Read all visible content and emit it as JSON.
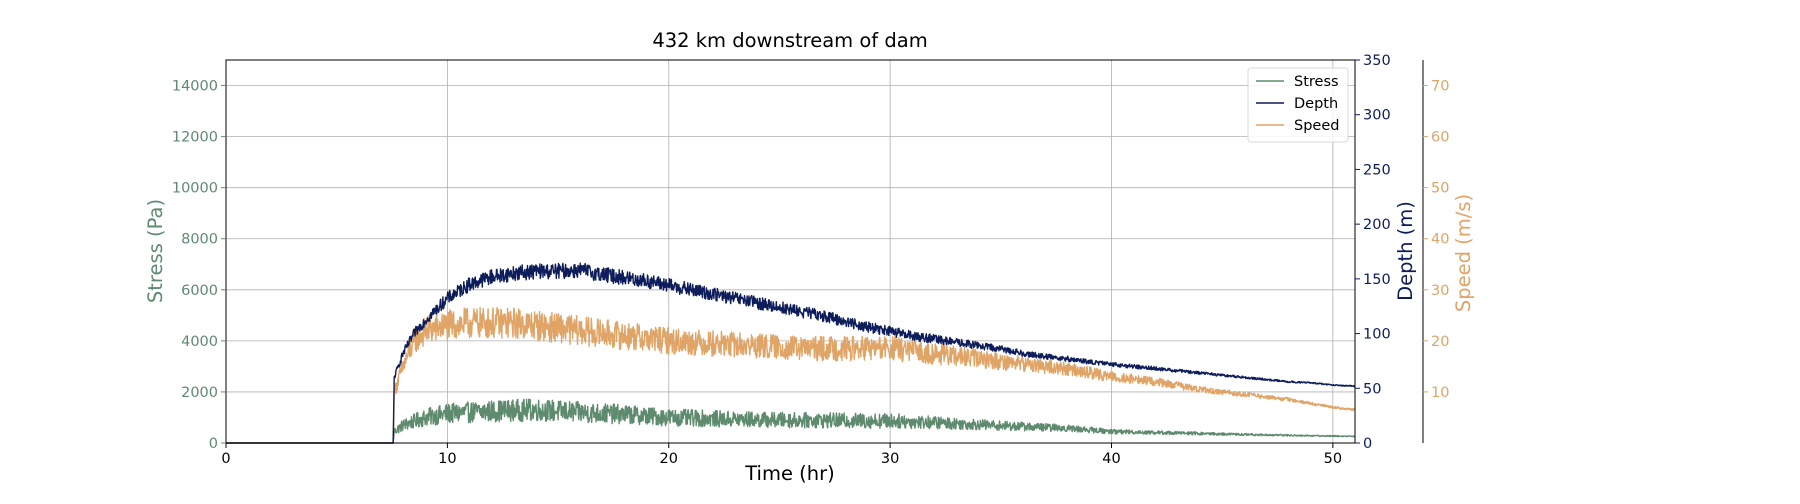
{
  "chart_data": {
    "type": "line",
    "title": "432 km downstream of dam",
    "xlabel": "Time (hr)",
    "xlim": [
      0,
      51
    ],
    "xticks": [
      0,
      10,
      20,
      30,
      40,
      50
    ],
    "grid": true,
    "legend_position": "top-right",
    "axes": {
      "stress": {
        "label": "Stress (Pa)",
        "color": "#5e8a6e",
        "lim": [
          0,
          15000
        ],
        "ticks": [
          0,
          2000,
          4000,
          6000,
          8000,
          10000,
          12000,
          14000
        ]
      },
      "depth": {
        "label": "Depth (m)",
        "color": "#0d1c5a",
        "lim": [
          0,
          350
        ],
        "ticks": [
          0,
          50,
          100,
          150,
          200,
          250,
          300,
          350
        ]
      },
      "speed": {
        "label": "Speed (m/s)",
        "color": "#e0a466",
        "lim": [
          0,
          75
        ],
        "ticks": [
          10,
          20,
          30,
          40,
          50,
          60,
          70
        ]
      }
    },
    "series": [
      {
        "name": "Stress",
        "axis": "stress",
        "color": "#5e8a6e",
        "noise": 0.34,
        "x": [
          0,
          7.55,
          7.6,
          8,
          9,
          10,
          12,
          14,
          16,
          18,
          20,
          22,
          25,
          28,
          30,
          32,
          35,
          38,
          40,
          45,
          48,
          51
        ],
        "y": [
          0,
          0,
          450,
          700,
          1000,
          1150,
          1250,
          1300,
          1200,
          1120,
          1000,
          950,
          900,
          880,
          870,
          800,
          680,
          580,
          450,
          350,
          300,
          260
        ]
      },
      {
        "name": "Depth",
        "axis": "depth",
        "color": "#0d1c5a",
        "noise": 0.045,
        "x": [
          0,
          7.55,
          7.6,
          8,
          8.5,
          9,
          10,
          11,
          12,
          13,
          14,
          15,
          16,
          17,
          18,
          19,
          20,
          21,
          22,
          23,
          24,
          25,
          26,
          27,
          28,
          29,
          30,
          31,
          32,
          33,
          34,
          35,
          36,
          37,
          38,
          39,
          40,
          41,
          42,
          43,
          44,
          45,
          46,
          47,
          48,
          49,
          50,
          51
        ],
        "y": [
          0,
          0,
          60,
          82,
          100,
          112,
          132,
          145,
          152,
          155,
          157,
          157,
          158,
          154,
          151,
          148,
          144,
          140,
          136,
          132,
          128,
          124,
          120,
          116,
          111,
          106,
          102,
          98,
          95,
          92,
          89,
          86,
          82,
          79,
          77,
          74,
          72,
          70,
          68,
          66,
          64,
          62,
          60,
          58,
          56,
          55,
          53,
          52
        ]
      },
      {
        "name": "Speed",
        "axis": "speed",
        "color": "#e0a466",
        "noise": 0.13,
        "x": [
          0,
          7.55,
          7.6,
          8,
          8.5,
          9,
          10,
          11,
          12,
          13,
          14,
          15,
          16,
          17,
          18,
          20,
          22,
          24,
          26,
          28,
          30,
          32,
          34,
          36,
          38,
          40,
          42,
          44,
          46,
          48,
          50,
          51
        ],
        "y": [
          0,
          0,
          10,
          15,
          20,
          22,
          23,
          23.5,
          23.5,
          23.5,
          23,
          22.5,
          22,
          21.5,
          21,
          20,
          19.5,
          19,
          18.5,
          18.5,
          18.5,
          17.5,
          16.5,
          15.5,
          14.5,
          13,
          12,
          10.5,
          9.5,
          8.5,
          7,
          6.5
        ]
      }
    ]
  }
}
